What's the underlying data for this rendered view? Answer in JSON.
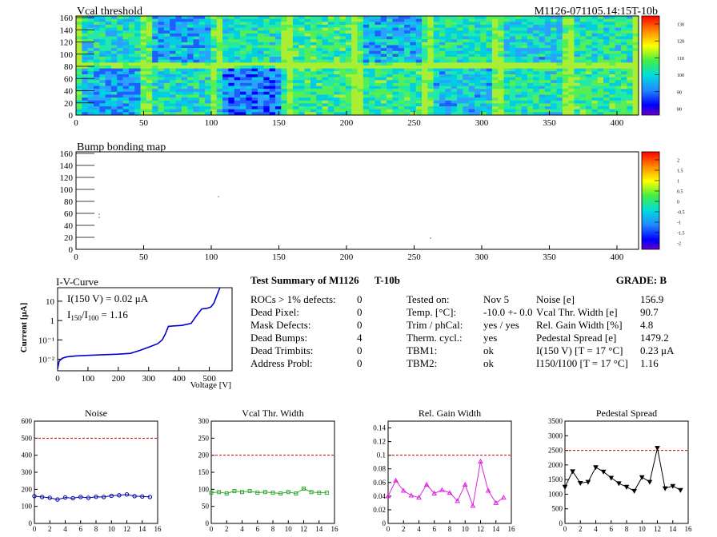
{
  "header": {
    "vcal_title": "Vcal threshold",
    "module_id": "M1126-071105.14:15T-10b",
    "bump_title": "Bump bonding map"
  },
  "maps": {
    "x_ticks": [
      "0",
      "50",
      "100",
      "150",
      "200",
      "250",
      "300",
      "350",
      "400"
    ],
    "y_ticks": [
      "0",
      "20",
      "40",
      "60",
      "80",
      "100",
      "120",
      "140",
      "160"
    ],
    "vcal_scale": [
      "130",
      "120",
      "110",
      "100",
      "90",
      "80"
    ],
    "bump_scale": [
      "2",
      "1.5",
      "1",
      "0.5",
      "0",
      "-0.5",
      "-1",
      "-1.5",
      "-2"
    ]
  },
  "iv": {
    "title": "I-V-Curve",
    "ylabel": "Current [μA]",
    "xlabel": "Voltage [V]",
    "annotation1": "I(150 V) = 0.02 μA",
    "annotation2_pre": "I",
    "annotation2_sub1": "150",
    "annotation2_mid": "/I",
    "annotation2_sub2": "100",
    "annotation2_post": " =  1.16",
    "x_ticks": [
      "0",
      "100",
      "200",
      "300",
      "400",
      "500"
    ],
    "y_ticks": [
      "10",
      "1",
      "10⁻¹",
      "10⁻²"
    ]
  },
  "summary": {
    "title_left": "Test Summary of M1126",
    "title_right": "T-10b",
    "grade_label": "GRADE:  B",
    "left_labels": [
      "ROCs > 1% defects:",
      "Dead Pixel:",
      "Mask Defects:",
      "Dead Bumps:",
      "Dead Trimbits:",
      "Address Probl:"
    ],
    "left_values": [
      "0",
      "0",
      "0",
      "4",
      "0",
      "0"
    ],
    "mid_labels": [
      "Tested on:",
      "Temp. [°C]:",
      "Trim / phCal:",
      "Therm. cycl.:",
      "TBM1:",
      "TBM2:"
    ],
    "mid_values": [
      "Nov 5",
      "-10.0 +- 0.0",
      "yes / yes",
      "yes",
      "ok",
      "ok"
    ],
    "right_labels": [
      "Noise [e]",
      "Vcal Thr. Width [e]",
      "Rel. Gain Width [%]",
      "Pedestal Spread [e]",
      "I(150 V) [T = 17 °C]",
      "I150/I100  [T = 17 °C]"
    ],
    "right_values": [
      "156.9",
      "90.7",
      "4.8",
      "1479.2",
      "0.23 μA",
      "1.16"
    ]
  },
  "chart_data": [
    {
      "type": "line",
      "title": "Noise",
      "x": [
        0,
        1,
        2,
        3,
        4,
        5,
        6,
        7,
        8,
        9,
        10,
        11,
        12,
        13,
        14,
        15
      ],
      "values": [
        160,
        155,
        150,
        140,
        152,
        148,
        155,
        150,
        156,
        155,
        162,
        165,
        170,
        160,
        158,
        155
      ],
      "threshold": 500,
      "xlim": [
        0,
        16
      ],
      "ylim": [
        0,
        600
      ],
      "x_ticks": [
        "0",
        "2",
        "4",
        "6",
        "8",
        "10",
        "12",
        "14",
        "16"
      ],
      "y_ticks": [
        "0",
        "100",
        "200",
        "300",
        "400",
        "500",
        "600"
      ],
      "color": "#0000aa"
    },
    {
      "type": "line",
      "title": "Vcal Thr. Width",
      "x": [
        0,
        1,
        2,
        3,
        4,
        5,
        6,
        7,
        8,
        9,
        10,
        11,
        12,
        13,
        14,
        15
      ],
      "values": [
        90,
        92,
        88,
        95,
        92,
        95,
        90,
        92,
        90,
        88,
        92,
        88,
        102,
        92,
        90,
        90
      ],
      "threshold": 200,
      "xlim": [
        0,
        16
      ],
      "ylim": [
        0,
        300
      ],
      "x_ticks": [
        "0",
        "2",
        "4",
        "6",
        "8",
        "10",
        "12",
        "14",
        "16"
      ],
      "y_ticks": [
        "0",
        "50",
        "100",
        "150",
        "200",
        "250",
        "300"
      ],
      "color": "#33aa33"
    },
    {
      "type": "line",
      "title": "Rel. Gain Width",
      "x": [
        0,
        1,
        2,
        3,
        4,
        5,
        6,
        7,
        8,
        9,
        10,
        11,
        12,
        13,
        14,
        15
      ],
      "values": [
        0.04,
        0.063,
        0.048,
        0.041,
        0.038,
        0.057,
        0.044,
        0.049,
        0.045,
        0.033,
        0.057,
        0.026,
        0.091,
        0.048,
        0.03,
        0.038
      ],
      "threshold": 0.1,
      "xlim": [
        0,
        16
      ],
      "ylim": [
        0,
        0.15
      ],
      "x_ticks": [
        "0",
        "2",
        "4",
        "6",
        "8",
        "10",
        "12",
        "14",
        "16"
      ],
      "y_ticks": [
        "0",
        "0.02",
        "0.04",
        "0.06",
        "0.08",
        "0.1",
        "0.12",
        "0.14"
      ],
      "color": "#dd22dd"
    },
    {
      "type": "line",
      "title": "Pedestal Spread",
      "x": [
        0,
        1,
        2,
        3,
        4,
        5,
        6,
        7,
        8,
        9,
        10,
        11,
        12,
        13,
        14,
        15
      ],
      "values": [
        1250,
        1780,
        1380,
        1420,
        1920,
        1770,
        1560,
        1370,
        1250,
        1110,
        1580,
        1420,
        2580,
        1200,
        1280,
        1140
      ],
      "threshold": 2500,
      "xlim": [
        0,
        16
      ],
      "ylim": [
        0,
        3500
      ],
      "x_ticks": [
        "0",
        "2",
        "4",
        "6",
        "8",
        "10",
        "12",
        "14",
        "16"
      ],
      "y_ticks": [
        "0",
        "500",
        "1000",
        "1500",
        "2000",
        "2500",
        "3000",
        "3500"
      ],
      "color": "#000000"
    }
  ]
}
